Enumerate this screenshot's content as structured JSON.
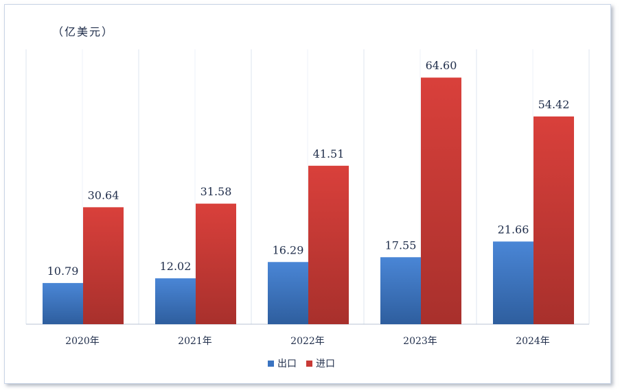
{
  "unit_label": "（亿美元）",
  "chart_data": {
    "type": "bar",
    "categories": [
      "2020年",
      "2021年",
      "2022年",
      "2023年",
      "2024年"
    ],
    "series": [
      {
        "name": "出口",
        "values": [
          10.79,
          12.02,
          16.29,
          17.55,
          21.66
        ],
        "color": "#3a73c0"
      },
      {
        "name": "进口",
        "values": [
          30.64,
          31.58,
          41.51,
          64.6,
          54.42
        ],
        "color": "#c83a36"
      }
    ],
    "ylim": [
      0,
      72
    ],
    "grid": "vertical separators",
    "legend": "bottom-center",
    "data_labels": true
  }
}
